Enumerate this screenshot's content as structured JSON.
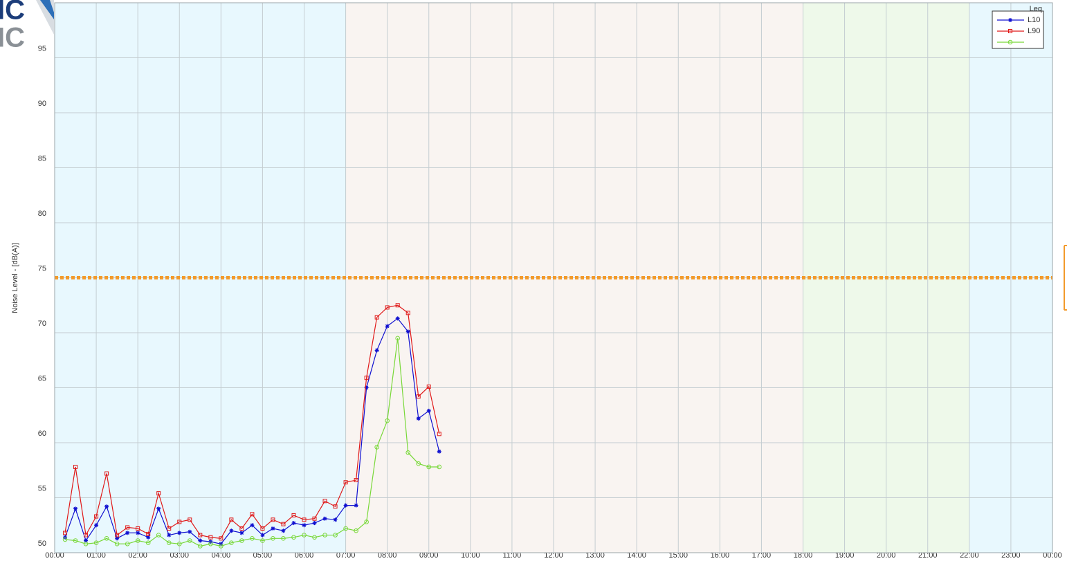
{
  "chart_data": {
    "type": "line",
    "logo": [
      "IC",
      "IC"
    ],
    "y_label": "Noise Level - [dB(A)]",
    "legend_title": "Leq",
    "legend": "upper right",
    "grid": true,
    "xlim": [
      0,
      24
    ],
    "ylim": [
      50,
      100
    ],
    "yticks": [
      50,
      55,
      60,
      65,
      70,
      75,
      80,
      85,
      90,
      95
    ],
    "xticks": [
      {
        "value": 0,
        "label": "00:00"
      },
      {
        "value": 1,
        "label": "01:00"
      },
      {
        "value": 2,
        "label": "02:00"
      },
      {
        "value": 3,
        "label": "03:00"
      },
      {
        "value": 4,
        "label": "04:00"
      },
      {
        "value": 5,
        "label": "05:00"
      },
      {
        "value": 6,
        "label": "06:00"
      },
      {
        "value": 7,
        "label": "07:00"
      },
      {
        "value": 8,
        "label": "08:00"
      },
      {
        "value": 9,
        "label": "09:00"
      },
      {
        "value": 10,
        "label": "10:00"
      },
      {
        "value": 11,
        "label": "11:00"
      },
      {
        "value": 12,
        "label": "12:00"
      },
      {
        "value": 13,
        "label": "13:00"
      },
      {
        "value": 14,
        "label": "14:00"
      },
      {
        "value": 15,
        "label": "15:00"
      },
      {
        "value": 16,
        "label": "16:00"
      },
      {
        "value": 17,
        "label": "17:00"
      },
      {
        "value": 18,
        "label": "18:00"
      },
      {
        "value": 19,
        "label": "19:00"
      },
      {
        "value": 20,
        "label": "20:00"
      },
      {
        "value": 21,
        "label": "21:00"
      },
      {
        "value": 22,
        "label": "22:00"
      },
      {
        "value": 23,
        "label": "23:00"
      },
      {
        "value": 24,
        "label": "00:00"
      }
    ],
    "bands": [
      {
        "start": 0,
        "end": 7,
        "color": "#e8f8fe"
      },
      {
        "start": 7,
        "end": 18,
        "color": "#f9f4f1"
      },
      {
        "start": 18,
        "end": 22,
        "color": "#eef9ea"
      },
      {
        "start": 22,
        "end": 24,
        "color": "#e8f8fe"
      }
    ],
    "threshold": {
      "value": 75,
      "color": "#f39a2b"
    },
    "x": [
      0.25,
      0.5,
      0.75,
      1,
      1.25,
      1.5,
      1.75,
      2,
      2.25,
      2.5,
      2.75,
      3,
      3.25,
      3.5,
      3.75,
      4,
      4.25,
      4.5,
      4.75,
      5,
      5.25,
      5.5,
      5.75,
      6,
      6.25,
      6.5,
      6.75,
      7,
      7.25,
      7.5,
      7.75,
      8,
      8.25,
      8.5,
      8.75,
      9,
      9.25
    ],
    "series": [
      {
        "name": "L10",
        "color": "#1010d0",
        "marker": "asterisk",
        "values": [
          51.4,
          54.0,
          51.1,
          52.5,
          54.2,
          51.3,
          51.8,
          51.8,
          51.4,
          54.0,
          51.6,
          51.8,
          51.9,
          51.1,
          51.0,
          50.8,
          52.0,
          51.8,
          52.5,
          51.6,
          52.2,
          52.0,
          52.7,
          52.5,
          52.7,
          53.1,
          53.0,
          54.3,
          54.3,
          65.0,
          68.4,
          70.6,
          71.3,
          70.1,
          62.2,
          62.9,
          59.2
        ]
      },
      {
        "name": "L90",
        "color": "#e01818",
        "marker": "square",
        "values": [
          51.8,
          57.8,
          51.6,
          53.3,
          57.2,
          51.6,
          52.3,
          52.2,
          51.7,
          55.4,
          52.2,
          52.8,
          53.0,
          51.6,
          51.4,
          51.3,
          53.0,
          52.2,
          53.5,
          52.2,
          53.0,
          52.6,
          53.4,
          53.0,
          53.1,
          54.7,
          54.2,
          56.4,
          56.6,
          65.9,
          71.4,
          72.3,
          72.5,
          71.8,
          64.2,
          65.1,
          60.8
        ]
      },
      {
        "color": "#78d838",
        "marker": "circle",
        "values": [
          51.2,
          51.1,
          50.8,
          50.9,
          51.3,
          50.8,
          50.8,
          51.1,
          50.9,
          51.6,
          50.9,
          50.8,
          51.1,
          50.6,
          50.8,
          50.6,
          50.9,
          51.1,
          51.3,
          51.1,
          51.3,
          51.3,
          51.4,
          51.6,
          51.4,
          51.6,
          51.6,
          52.2,
          52.0,
          52.8,
          59.6,
          62.0,
          69.5,
          59.1,
          58.1,
          57.8,
          57.8
        ]
      }
    ]
  }
}
